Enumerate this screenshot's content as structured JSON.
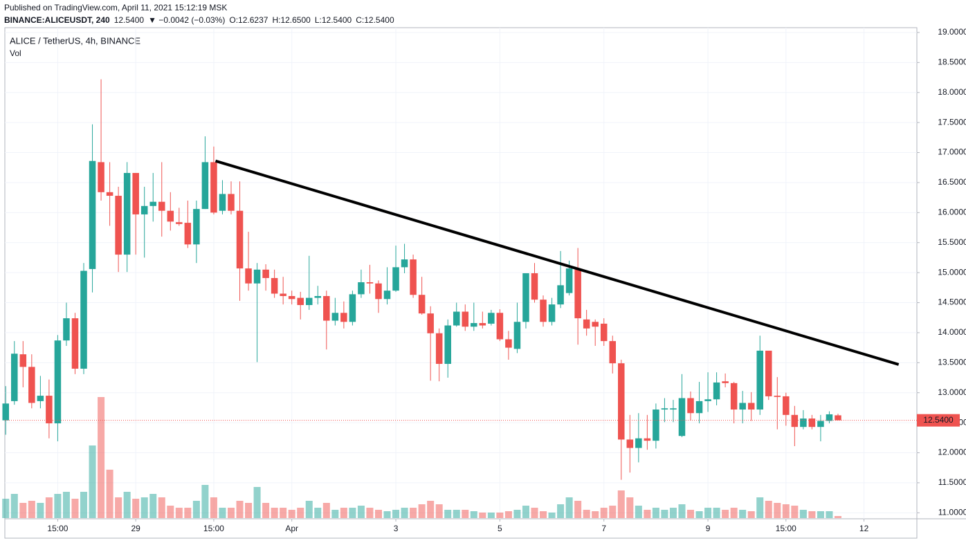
{
  "header": {
    "published": "Published on TradingView.com, April 11, 2021 15:12:19 MSK",
    "symbol": "BINANCE:ALICEUSDT, 240",
    "price": "12.5400",
    "change": "▼ −0.0042 (−0.03%)",
    "ohlc": [
      {
        "key": "O:",
        "value": "12.6237"
      },
      {
        "key": "H:",
        "value": "12.6500"
      },
      {
        "key": "L:",
        "value": "12.5400"
      },
      {
        "key": "C:",
        "value": "12.5400"
      }
    ]
  },
  "chart_data": {
    "type": "candlestick",
    "title": "ALICE / TetherUS, 4h, BINANCE",
    "volume_label": "Vol",
    "up_color": "#26a69a",
    "down_color": "#ef5350",
    "grid": true,
    "open": [
      12.54,
      12.86,
      13.64,
      13.43,
      12.86,
      12.95,
      12.49,
      13.87,
      14.24,
      13.4,
      15.06,
      16.84,
      16.34,
      16.28,
      15.3,
      16.66,
      15.97,
      16.11,
      16.18,
      16.03,
      15.84,
      15.83,
      15.47,
      16.06,
      16.84,
      16.03,
      16.31,
      16.03,
      15.07,
      14.82,
      15.05,
      14.91,
      14.65,
      14.61,
      14.58,
      14.46,
      14.58,
      14.61,
      14.2,
      14.33,
      14.18,
      14.64,
      14.84,
      14.82,
      14.56,
      14.7,
      15.09,
      15.22,
      14.63,
      14.32,
      13.99,
      13.48,
      14.12,
      14.35,
      14.1,
      14.16,
      14.15,
      14.33,
      13.89,
      13.73,
      14.18,
      14.99,
      14.55,
      14.18,
      14.47,
      14.66,
      15.05,
      14.22,
      14.18,
      14.15,
      13.86,
      13.49,
      12.22,
      12.08,
      12.24,
      12.2,
      12.72,
      12.72,
      12.28,
      12.91,
      12.66,
      12.86,
      12.89,
      13.19,
      13.16,
      12.72,
      12.83,
      12.72,
      13.7,
      12.95,
      12.94,
      12.63,
      12.43,
      12.57,
      12.43,
      12.53,
      12.6237
    ],
    "high": [
      13.11,
      13.86,
      13.86,
      13.64,
      13.28,
      13.22,
      13.96,
      14.5,
      14.33,
      15.16,
      17.47,
      18.22,
      16.84,
      16.43,
      16.84,
      16.66,
      16.43,
      16.66,
      16.84,
      16.34,
      16.08,
      16.2,
      16.2,
      17.27,
      17.1,
      16.54,
      16.52,
      16.52,
      15.68,
      15.16,
      15.14,
      15.05,
      14.93,
      14.7,
      14.68,
      15.28,
      14.78,
      14.7,
      14.58,
      14.52,
      14.7,
      15.05,
      15.13,
      14.87,
      15.09,
      15.45,
      15.48,
      15.3,
      14.93,
      14.44,
      14.07,
      14.22,
      14.5,
      14.47,
      14.5,
      14.35,
      14.38,
      14.39,
      14.03,
      14.5,
      14.99,
      15.16,
      14.62,
      14.58,
      15.36,
      15.2,
      15.41,
      14.38,
      14.22,
      14.24,
      13.95,
      13.55,
      12.63,
      12.66,
      12.63,
      12.82,
      12.91,
      12.88,
      13.31,
      13.02,
      13.18,
      13.34,
      13.34,
      13.32,
      13.18,
      13.03,
      13.01,
      13.95,
      13.7,
      13.26,
      13.0,
      12.78,
      12.71,
      12.63,
      12.63,
      12.69,
      12.65
    ],
    "low": [
      12.3,
      12.8,
      13.09,
      12.74,
      12.74,
      12.24,
      12.19,
      13.78,
      13.31,
      13.31,
      14.67,
      16.2,
      15.78,
      15.01,
      15.01,
      15.3,
      15.25,
      15.85,
      15.6,
      15.7,
      15.78,
      15.41,
      15.16,
      16.06,
      15.97,
      15.97,
      15.97,
      14.53,
      14.7,
      13.51,
      14.7,
      14.58,
      14.47,
      14.47,
      14.22,
      14.38,
      14.47,
      13.72,
      14.12,
      14.07,
      14.12,
      14.58,
      14.65,
      14.33,
      14.47,
      14.68,
      14.99,
      14.58,
      14.3,
      13.2,
      13.19,
      13.25,
      14.1,
      14.03,
      14.03,
      14.07,
      14.12,
      13.86,
      13.55,
      13.66,
      14.07,
      14.5,
      14.1,
      14.12,
      14.41,
      14.62,
      13.8,
      13.95,
      13.78,
      13.78,
      13.32,
      11.55,
      11.67,
      11.84,
      12.05,
      12.07,
      12.51,
      12.51,
      12.26,
      12.54,
      12.49,
      12.68,
      12.79,
      13.09,
      12.49,
      12.49,
      12.53,
      12.63,
      12.88,
      12.39,
      12.45,
      12.11,
      12.39,
      12.39,
      12.19,
      12.49,
      12.54
    ],
    "close": [
      12.82,
      13.65,
      13.43,
      12.83,
      12.95,
      12.49,
      13.87,
      14.24,
      13.4,
      15.03,
      16.86,
      16.34,
      16.28,
      15.3,
      16.66,
      15.97,
      16.11,
      16.18,
      16.03,
      15.85,
      15.81,
      15.47,
      16.06,
      16.84,
      16.0,
      16.31,
      16.03,
      15.07,
      14.82,
      15.05,
      14.91,
      14.65,
      14.61,
      14.56,
      14.46,
      14.58,
      14.61,
      14.2,
      14.33,
      14.18,
      14.64,
      14.84,
      14.82,
      14.56,
      14.7,
      15.09,
      15.22,
      14.63,
      14.32,
      13.99,
      13.48,
      14.12,
      14.35,
      14.1,
      14.16,
      14.12,
      14.33,
      13.89,
      13.75,
      14.18,
      14.99,
      14.55,
      14.18,
      14.47,
      14.79,
      15.07,
      14.24,
      14.07,
      14.1,
      13.86,
      13.49,
      12.22,
      12.08,
      12.24,
      12.2,
      12.72,
      12.74,
      12.74,
      12.91,
      12.66,
      12.86,
      12.89,
      13.17,
      13.16,
      12.72,
      12.83,
      12.72,
      13.7,
      12.94,
      12.93,
      12.63,
      12.43,
      12.57,
      12.43,
      12.53,
      12.64,
      12.54
    ],
    "volume": [
      28,
      35,
      22,
      25,
      22,
      30,
      35,
      38,
      28,
      38,
      105,
      175,
      70,
      30,
      38,
      28,
      30,
      35,
      30,
      18,
      15,
      15,
      25,
      48,
      30,
      15,
      15,
      25,
      22,
      45,
      22,
      15,
      15,
      12,
      15,
      25,
      15,
      22,
      12,
      15,
      15,
      18,
      15,
      12,
      10,
      12,
      15,
      15,
      20,
      25,
      20,
      12,
      12,
      12,
      10,
      8,
      8,
      8,
      10,
      12,
      18,
      15,
      10,
      8,
      20,
      30,
      25,
      12,
      10,
      15,
      18,
      40,
      30,
      18,
      12,
      15,
      12,
      15,
      20,
      12,
      10,
      15,
      15,
      12,
      15,
      12,
      10,
      30,
      25,
      22,
      20,
      18,
      12,
      10,
      10,
      10,
      3
    ],
    "xlim": [
      -0.1,
      105.1
    ],
    "ylim": [
      10.9,
      19.08
    ],
    "xticks": [
      {
        "value": 6,
        "label": "15:00"
      },
      {
        "value": 15,
        "label": "29"
      },
      {
        "value": 24,
        "label": "15:00"
      },
      {
        "value": 33,
        "label": "Apr"
      },
      {
        "value": 45,
        "label": "3"
      },
      {
        "value": 57,
        "label": "5"
      },
      {
        "value": 69,
        "label": "7"
      },
      {
        "value": 81,
        "label": "9"
      },
      {
        "value": 90,
        "label": "15:00"
      },
      {
        "value": 99,
        "label": "12"
      }
    ],
    "yticks": [
      {
        "value": 11,
        "label": "11.0000"
      },
      {
        "value": 11.5,
        "label": "11.5000"
      },
      {
        "value": 12,
        "label": "12.0000"
      },
      {
        "value": 12.5,
        "label": "12.5000"
      },
      {
        "value": 13,
        "label": "13.0000"
      },
      {
        "value": 13.5,
        "label": "13.5000"
      },
      {
        "value": 14,
        "label": "14.0000"
      },
      {
        "value": 14.5,
        "label": "14.5000"
      },
      {
        "value": 15,
        "label": "15.0000"
      },
      {
        "value": 15.5,
        "label": "15.5000"
      },
      {
        "value": 16,
        "label": "16.0000"
      },
      {
        "value": 16.5,
        "label": "16.5000"
      },
      {
        "value": 17,
        "label": "17.0000"
      },
      {
        "value": 17.5,
        "label": "17.5000"
      },
      {
        "value": 18,
        "label": "18.0000"
      },
      {
        "value": 18.5,
        "label": "18.5000"
      },
      {
        "value": 19,
        "label": "19.0000"
      }
    ],
    "last_price": {
      "value": 12.54,
      "label": "12.5400"
    },
    "trendline": {
      "x": [
        24.2,
        103
      ],
      "y": [
        16.86,
        13.47
      ]
    }
  }
}
